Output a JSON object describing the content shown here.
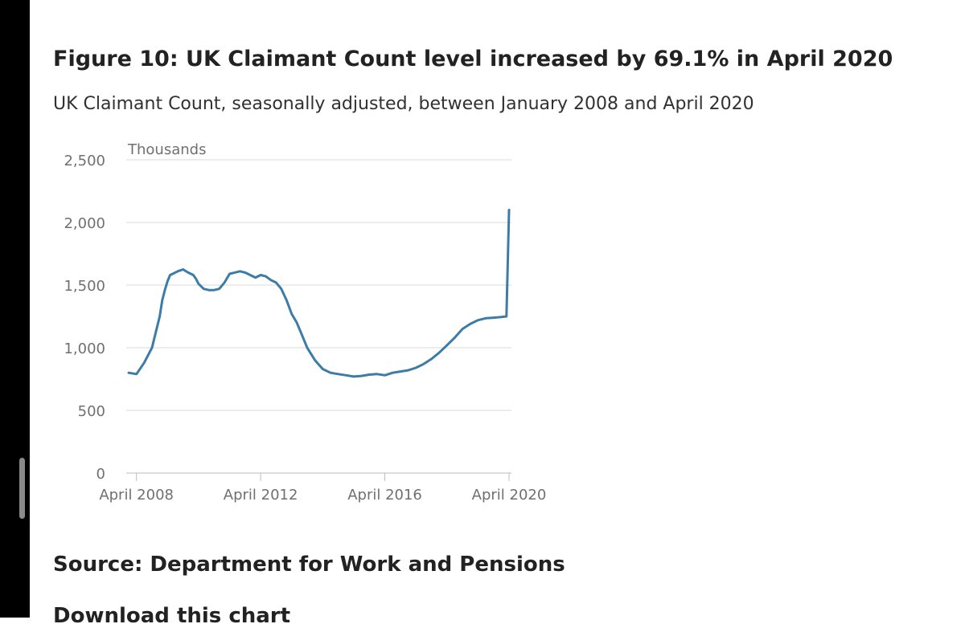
{
  "figure": {
    "title": "Figure 10: UK Claimant Count level increased by 69.1% in April 2020",
    "subtitle": "UK Claimant Count, seasonally adjusted, between January 2008 and April 2020",
    "source": "Source: Department for Work and Pensions",
    "download_label": "Download this chart"
  },
  "chart_data": {
    "type": "line",
    "title": "Figure 10: UK Claimant Count level increased by 69.1% in April 2020",
    "subtitle": "UK Claimant Count, seasonally adjusted, between January 2008 and April 2020",
    "unit_label": "Thousands",
    "xlabel": "",
    "ylabel": "",
    "ylim": [
      0,
      2500
    ],
    "yticks": [
      0,
      500,
      1000,
      1500,
      2000,
      2500
    ],
    "ytick_labels": [
      "0",
      "500",
      "1,000",
      "1,500",
      "2,000",
      "2,500"
    ],
    "xticks": [
      "2008-04",
      "2012-04",
      "2016-04",
      "2020-04"
    ],
    "xtick_labels": [
      "April 2008",
      "April 2012",
      "April 2016",
      "April 2020"
    ],
    "grid": true,
    "line_color": "#3c7ca6",
    "grid_color": "#d9d9d9",
    "series": [
      {
        "x": [
          "2008-01",
          "2008-04",
          "2008-07",
          "2008-10",
          "2009-01",
          "2009-02",
          "2009-03",
          "2009-04",
          "2009-05",
          "2009-06",
          "2009-08",
          "2009-10",
          "2009-12",
          "2010-02",
          "2010-03",
          "2010-04",
          "2010-06",
          "2010-08",
          "2010-10",
          "2010-12",
          "2011-02",
          "2011-04",
          "2011-06",
          "2011-08",
          "2011-10",
          "2011-12",
          "2012-02",
          "2012-04",
          "2012-06",
          "2012-08",
          "2012-10",
          "2012-12",
          "2013-02",
          "2013-04",
          "2013-06",
          "2013-08",
          "2013-10",
          "2014-01",
          "2014-04",
          "2014-07",
          "2014-10",
          "2015-01",
          "2015-04",
          "2015-07",
          "2015-10",
          "2016-01",
          "2016-04",
          "2016-07",
          "2016-10",
          "2017-01",
          "2017-04",
          "2017-07",
          "2017-10",
          "2018-01",
          "2018-04",
          "2018-07",
          "2018-10",
          "2019-01",
          "2019-04",
          "2019-07",
          "2019-10",
          "2020-01",
          "2020-03",
          "2020-04"
        ],
        "y": [
          800,
          790,
          880,
          1000,
          1250,
          1380,
          1460,
          1530,
          1580,
          1590,
          1610,
          1625,
          1600,
          1580,
          1550,
          1510,
          1470,
          1460,
          1460,
          1470,
          1520,
          1590,
          1600,
          1610,
          1600,
          1580,
          1560,
          1580,
          1570,
          1540,
          1520,
          1470,
          1380,
          1270,
          1200,
          1100,
          1000,
          900,
          830,
          800,
          790,
          780,
          770,
          775,
          785,
          790,
          780,
          800,
          810,
          820,
          840,
          870,
          910,
          960,
          1020,
          1080,
          1150,
          1190,
          1220,
          1235,
          1240,
          1245,
          1250,
          2100
        ]
      }
    ]
  }
}
